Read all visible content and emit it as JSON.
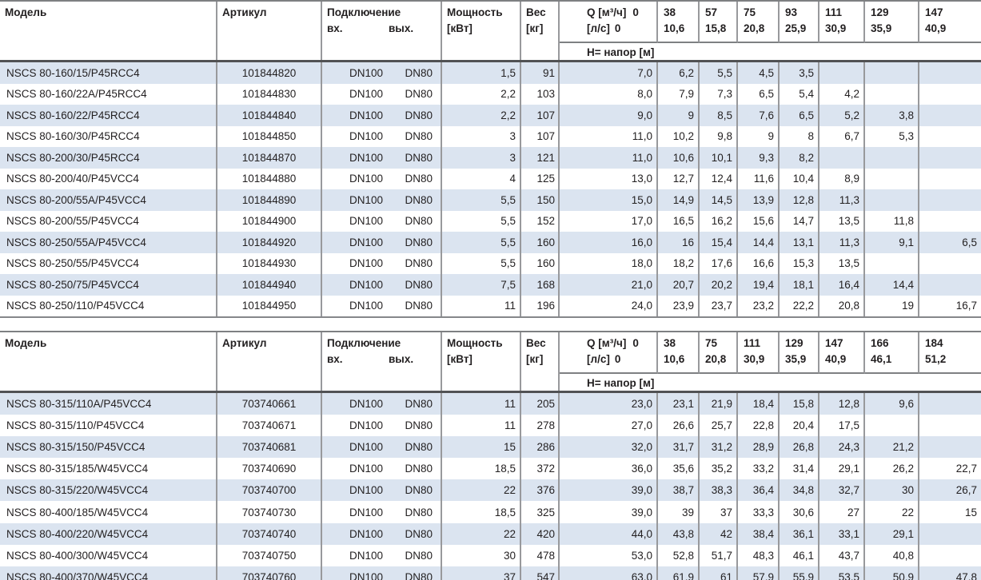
{
  "colors": {
    "row_stripe": "#dbe4f0",
    "border_gray": "#98999c",
    "border_dark": "#515254",
    "text": "#221f20"
  },
  "tables": [
    {
      "header": {
        "model": "Модель",
        "artikul": "Артикул",
        "connection": "Подключение",
        "conn_in": "вх.",
        "conn_out": "вых.",
        "power": "Мощность",
        "power_unit": "[кВт]",
        "weight": "Вес",
        "weight_unit": "[кг]",
        "q_label": "Q [м³/ч]",
        "q_zero": "0",
        "ls_label": "[л/с]",
        "ls_zero": "0",
        "h_label": "Н= напор [м]",
        "q_cols": [
          [
            "38",
            "10,6"
          ],
          [
            "57",
            "15,8"
          ],
          [
            "75",
            "20,8"
          ],
          [
            "93",
            "25,9"
          ],
          [
            "111",
            "30,9"
          ],
          [
            "129",
            "35,9"
          ],
          [
            "147",
            "40,9"
          ]
        ]
      },
      "rows": [
        {
          "model": "NSCS 80-160/15/P45RCC4",
          "artikul": "101844820",
          "din": "DN100",
          "dout": "DN80",
          "power": "1,5",
          "weight": "91",
          "h": [
            "7,0",
            "6,2",
            "5,5",
            "4,5",
            "3,5",
            "",
            "",
            ""
          ]
        },
        {
          "model": "NSCS 80-160/22A/P45RCC4",
          "artikul": "101844830",
          "din": "DN100",
          "dout": "DN80",
          "power": "2,2",
          "weight": "103",
          "h": [
            "8,0",
            "7,9",
            "7,3",
            "6,5",
            "5,4",
            "4,2",
            "",
            ""
          ]
        },
        {
          "model": "NSCS 80-160/22/P45RCC4",
          "artikul": "101844840",
          "din": "DN100",
          "dout": "DN80",
          "power": "2,2",
          "weight": "107",
          "h": [
            "9,0",
            "9",
            "8,5",
            "7,6",
            "6,5",
            "5,2",
            "3,8",
            ""
          ]
        },
        {
          "model": "NSCS 80-160/30/P45RCC4",
          "artikul": "101844850",
          "din": "DN100",
          "dout": "DN80",
          "power": "3",
          "weight": "107",
          "h": [
            "11,0",
            "10,2",
            "9,8",
            "9",
            "8",
            "6,7",
            "5,3",
            ""
          ]
        },
        {
          "model": "NSCS 80-200/30/P45RCC4",
          "artikul": "101844870",
          "din": "DN100",
          "dout": "DN80",
          "power": "3",
          "weight": "121",
          "h": [
            "11,0",
            "10,6",
            "10,1",
            "9,3",
            "8,2",
            "",
            "",
            ""
          ]
        },
        {
          "model": "NSCS 80-200/40/P45VCC4",
          "artikul": "101844880",
          "din": "DN100",
          "dout": "DN80",
          "power": "4",
          "weight": "125",
          "h": [
            "13,0",
            "12,7",
            "12,4",
            "11,6",
            "10,4",
            "8,9",
            "",
            ""
          ]
        },
        {
          "model": "NSCS 80-200/55A/P45VCC4",
          "artikul": "101844890",
          "din": "DN100",
          "dout": "DN80",
          "power": "5,5",
          "weight": "150",
          "h": [
            "15,0",
            "14,9",
            "14,5",
            "13,9",
            "12,8",
            "11,3",
            "",
            ""
          ]
        },
        {
          "model": "NSCS 80-200/55/P45VCC4",
          "artikul": "101844900",
          "din": "DN100",
          "dout": "DN80",
          "power": "5,5",
          "weight": "152",
          "h": [
            "17,0",
            "16,5",
            "16,2",
            "15,6",
            "14,7",
            "13,5",
            "11,8",
            ""
          ]
        },
        {
          "model": "NSCS 80-250/55A/P45VCC4",
          "artikul": "101844920",
          "din": "DN100",
          "dout": "DN80",
          "power": "5,5",
          "weight": "160",
          "h": [
            "16,0",
            "16",
            "15,4",
            "14,4",
            "13,1",
            "11,3",
            "9,1",
            "6,5"
          ]
        },
        {
          "model": "NSCS 80-250/55/P45VCC4",
          "artikul": "101844930",
          "din": "DN100",
          "dout": "DN80",
          "power": "5,5",
          "weight": "160",
          "h": [
            "18,0",
            "18,2",
            "17,6",
            "16,6",
            "15,3",
            "13,5",
            "",
            ""
          ]
        },
        {
          "model": "NSCS 80-250/75/P45VCC4",
          "artikul": "101844940",
          "din": "DN100",
          "dout": "DN80",
          "power": "7,5",
          "weight": "168",
          "h": [
            "21,0",
            "20,7",
            "20,2",
            "19,4",
            "18,1",
            "16,4",
            "14,4",
            ""
          ]
        },
        {
          "model": "NSCS 80-250/110/P45VCC4",
          "artikul": "101844950",
          "din": "DN100",
          "dout": "DN80",
          "power": "11",
          "weight": "196",
          "h": [
            "24,0",
            "23,9",
            "23,7",
            "23,2",
            "22,2",
            "20,8",
            "19",
            "16,7"
          ]
        }
      ]
    },
    {
      "header": {
        "model": "Модель",
        "artikul": "Артикул",
        "connection": "Подключение",
        "conn_in": "вх.",
        "conn_out": "вых.",
        "power": "Мощность",
        "power_unit": "[кВт]",
        "weight": "Вес",
        "weight_unit": "[кг]",
        "q_label": "Q [м³/ч]",
        "q_zero": "0",
        "ls_label": "[л/с]",
        "ls_zero": "0",
        "h_label": "Н= напор [м]",
        "q_cols": [
          [
            "38",
            "10,6"
          ],
          [
            "75",
            "20,8"
          ],
          [
            "111",
            "30,9"
          ],
          [
            "129",
            "35,9"
          ],
          [
            "147",
            "40,9"
          ],
          [
            "166",
            "46,1"
          ],
          [
            "184",
            "51,2"
          ]
        ]
      },
      "rows": [
        {
          "model": "NSCS 80-315/110A/P45VCC4",
          "artikul": "703740661",
          "din": "DN100",
          "dout": "DN80",
          "power": "11",
          "weight": "205",
          "h": [
            "23,0",
            "23,1",
            "21,9",
            "18,4",
            "15,8",
            "12,8",
            "9,6",
            ""
          ]
        },
        {
          "model": "NSCS 80-315/110/P45VCC4",
          "artikul": "703740671",
          "din": "DN100",
          "dout": "DN80",
          "power": "11",
          "weight": "278",
          "h": [
            "27,0",
            "26,6",
            "25,7",
            "22,8",
            "20,4",
            "17,5",
            "",
            ""
          ]
        },
        {
          "model": "NSCS 80-315/150/P45VCC4",
          "artikul": "703740681",
          "din": "DN100",
          "dout": "DN80",
          "power": "15",
          "weight": "286",
          "h": [
            "32,0",
            "31,7",
            "31,2",
            "28,9",
            "26,8",
            "24,3",
            "21,2",
            ""
          ]
        },
        {
          "model": "NSCS 80-315/185/W45VCC4",
          "artikul": "703740690",
          "din": "DN100",
          "dout": "DN80",
          "power": "18,5",
          "weight": "372",
          "h": [
            "36,0",
            "35,6",
            "35,2",
            "33,2",
            "31,4",
            "29,1",
            "26,2",
            "22,7"
          ]
        },
        {
          "model": "NSCS 80-315/220/W45VCC4",
          "artikul": "703740700",
          "din": "DN100",
          "dout": "DN80",
          "power": "22",
          "weight": "376",
          "h": [
            "39,0",
            "38,7",
            "38,3",
            "36,4",
            "34,8",
            "32,7",
            "30",
            "26,7"
          ]
        },
        {
          "model": "NSCS 80-400/185/W45VCC4",
          "artikul": "703740730",
          "din": "DN100",
          "dout": "DN80",
          "power": "18,5",
          "weight": "325",
          "h": [
            "39,0",
            "39",
            "37",
            "33,3",
            "30,6",
            "27",
            "22",
            "15"
          ]
        },
        {
          "model": "NSCS 80-400/220/W45VCC4",
          "artikul": "703740740",
          "din": "DN100",
          "dout": "DN80",
          "power": "22",
          "weight": "420",
          "h": [
            "44,0",
            "43,8",
            "42",
            "38,4",
            "36,1",
            "33,1",
            "29,1",
            ""
          ]
        },
        {
          "model": "NSCS 80-400/300/W45VCC4",
          "artikul": "703740750",
          "din": "DN100",
          "dout": "DN80",
          "power": "30",
          "weight": "478",
          "h": [
            "53,0",
            "52,8",
            "51,7",
            "48,3",
            "46,1",
            "43,7",
            "40,8",
            ""
          ]
        },
        {
          "model": "NSCS 80-400/370/W45VCC4",
          "artikul": "703740760",
          "din": "DN100",
          "dout": "DN80",
          "power": "37",
          "weight": "547",
          "h": [
            "63,0",
            "61,9",
            "61",
            "57,9",
            "55,9",
            "53,5",
            "50,9",
            "47,8"
          ]
        }
      ]
    }
  ]
}
